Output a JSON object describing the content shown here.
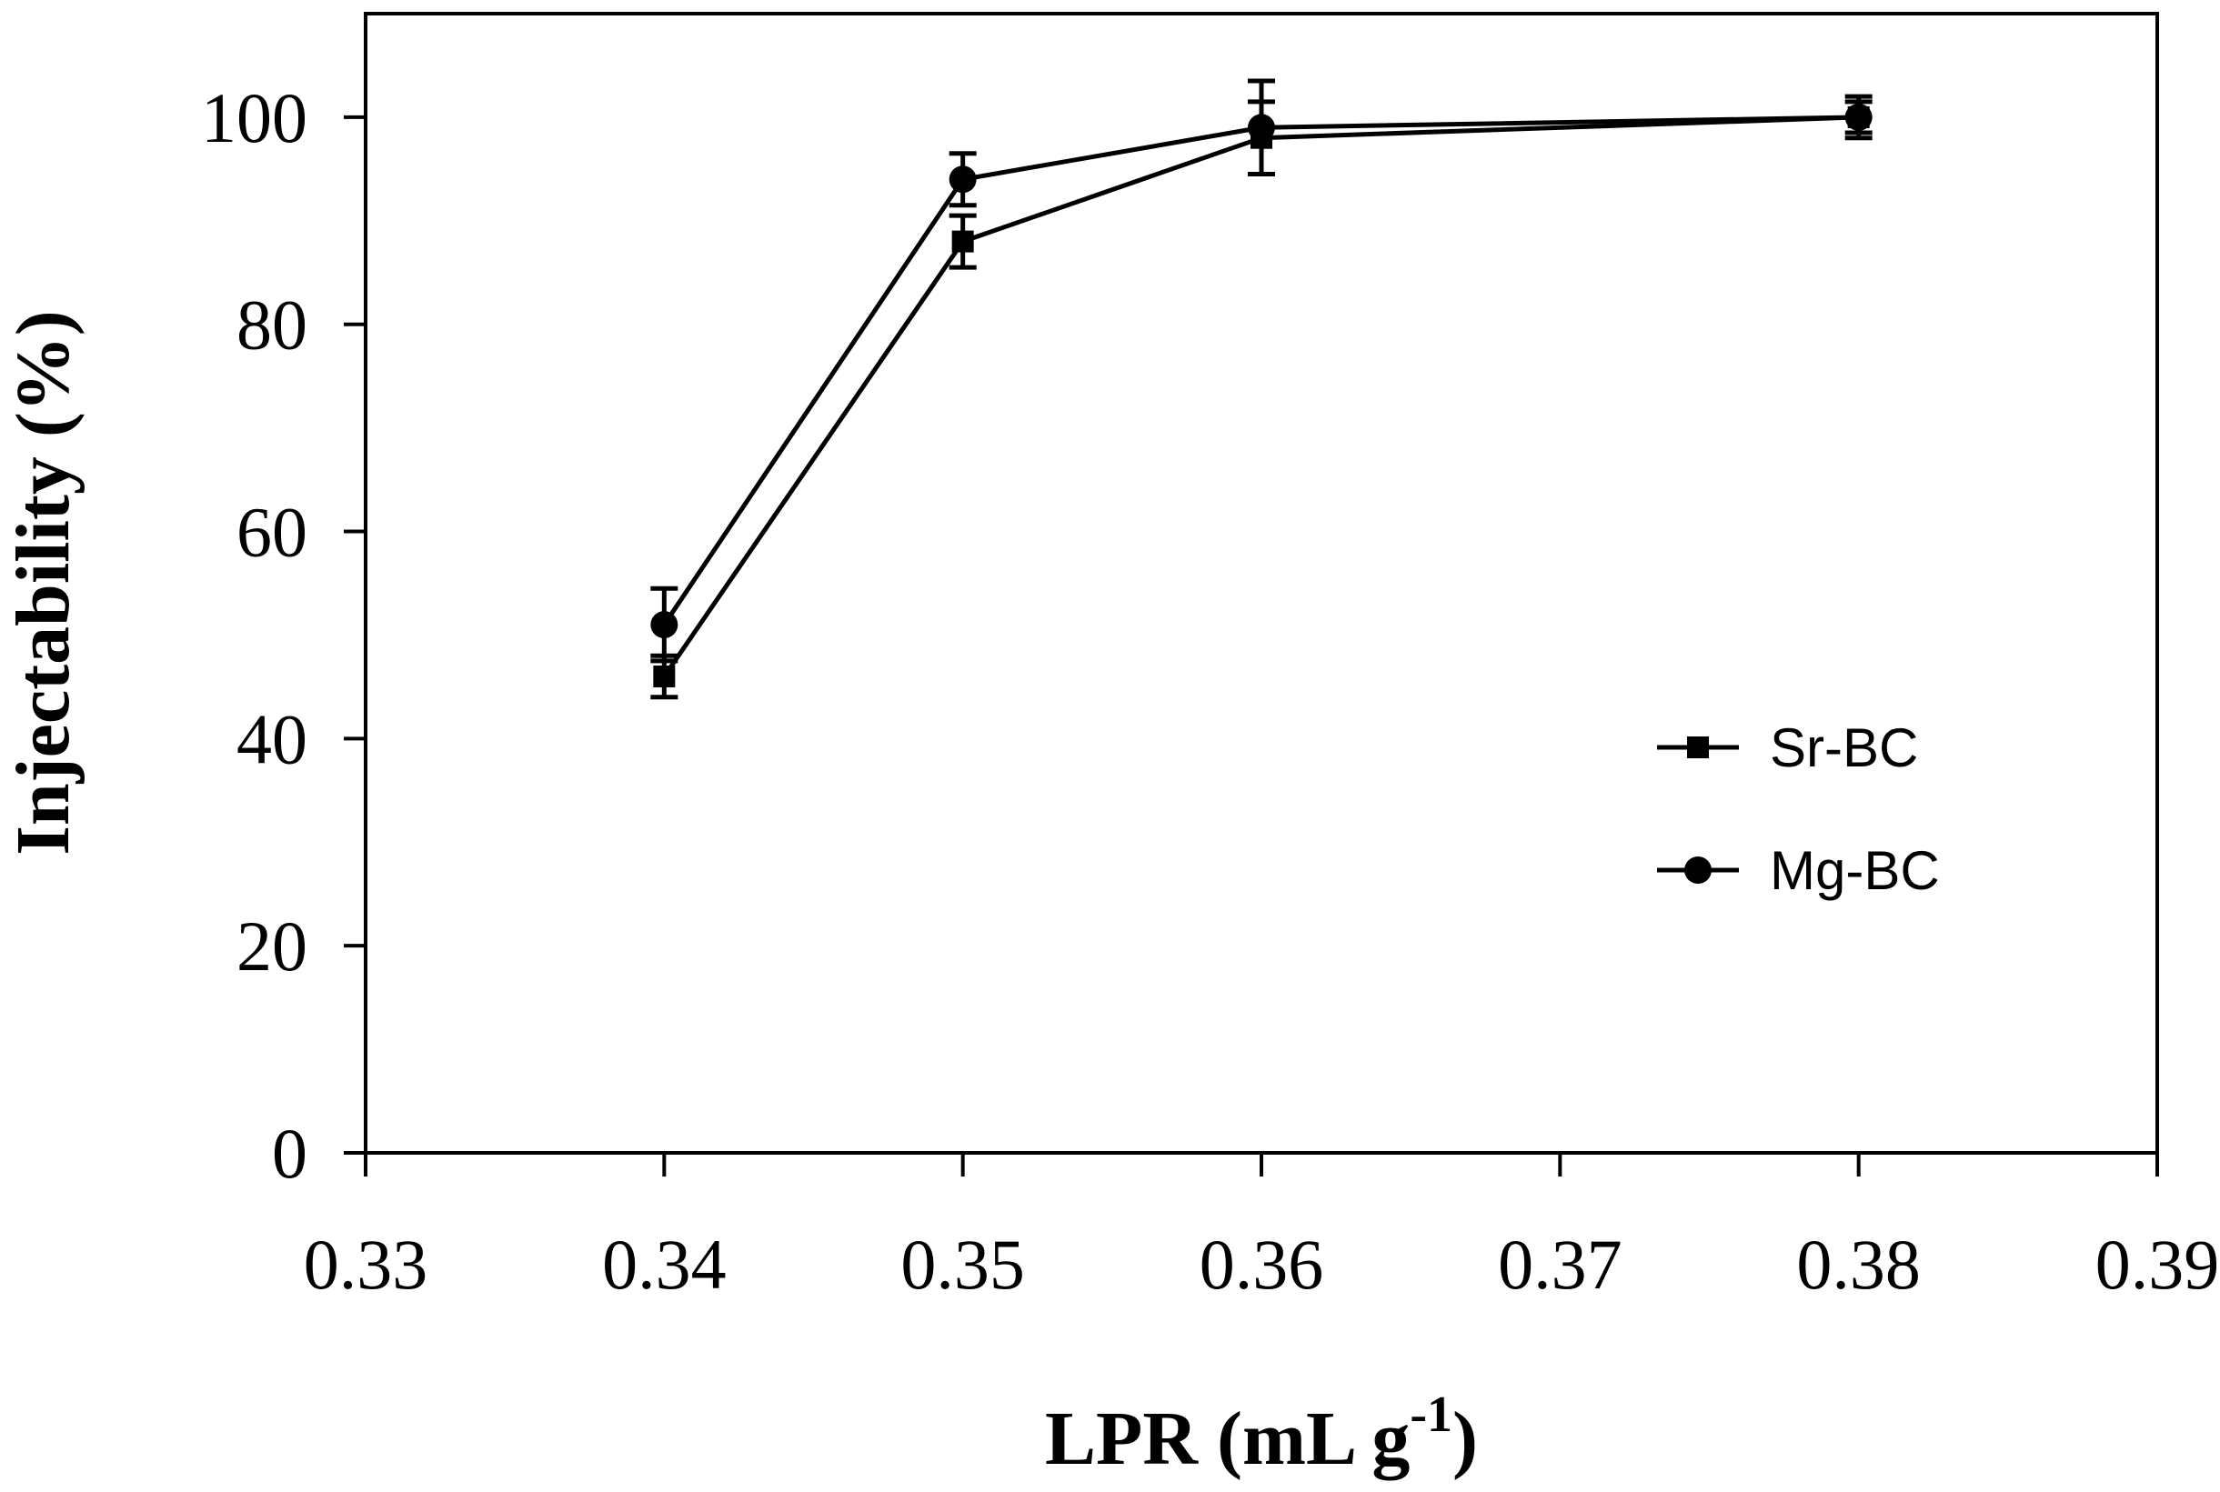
{
  "chart_data": {
    "type": "line",
    "xlabel": "LPR (mL g",
    "xlabel_superscript": "-1",
    "xlabel_suffix": ")",
    "ylabel": "Injectability (%)",
    "xlim": [
      0.33,
      0.39
    ],
    "ylim": [
      0,
      110
    ],
    "x_ticks": [
      "0.33",
      "0.34",
      "0.35",
      "0.36",
      "0.37",
      "0.38",
      "0.39"
    ],
    "y_ticks": [
      "0",
      "20",
      "40",
      "60",
      "80",
      "100"
    ],
    "grid": false,
    "legend_position": "right-middle",
    "series": [
      {
        "name": "Sr-BC",
        "marker": "square",
        "x": [
          0.34,
          0.35,
          0.36,
          0.38
        ],
        "y": [
          46,
          88,
          98,
          100
        ],
        "err": [
          2,
          2.5,
          3.5,
          2
        ]
      },
      {
        "name": "Mg-BC",
        "marker": "circle",
        "x": [
          0.34,
          0.35,
          0.36,
          0.38
        ],
        "y": [
          51,
          94,
          99,
          100
        ],
        "err": [
          3.5,
          2.5,
          4.5,
          1.5
        ]
      }
    ]
  }
}
